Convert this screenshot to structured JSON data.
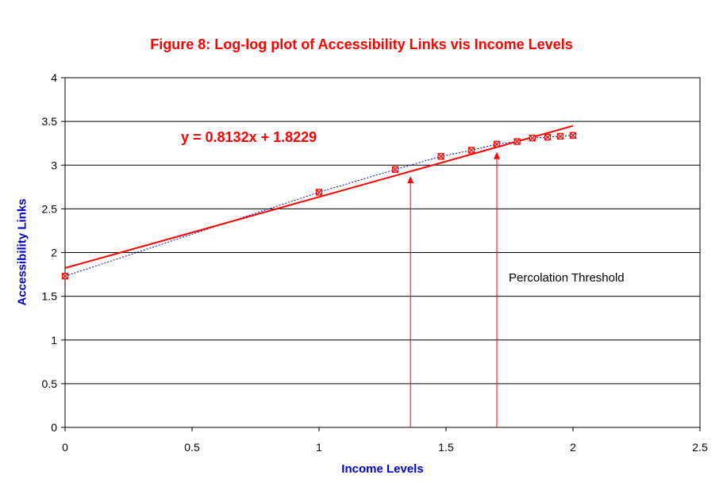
{
  "chart_data": {
    "type": "scatter",
    "title": "Figure 8: Log-log plot of Accessibility Links vis Income Levels",
    "xlabel": "Income Levels",
    "ylabel": "Accessibility Links",
    "xlim": [
      0,
      2.5
    ],
    "ylim": [
      0,
      4
    ],
    "x_ticks": [
      0,
      0.5,
      1,
      1.5,
      2,
      2.5
    ],
    "y_ticks": [
      0,
      0.5,
      1,
      1.5,
      2,
      2.5,
      3,
      3.5,
      4
    ],
    "x_tick_labels": [
      "0",
      "0.5",
      "1",
      "1.5",
      "2",
      "2.5"
    ],
    "y_tick_labels": [
      "0",
      "0.5",
      "1",
      "1.5",
      "2",
      "2.5",
      "3",
      "3.5",
      "4"
    ],
    "grid": "horizontal",
    "points": {
      "x": [
        0,
        1.0,
        1.3,
        1.48,
        1.6,
        1.7,
        1.78,
        1.84,
        1.9,
        1.95,
        2.0
      ],
      "y": [
        1.73,
        2.69,
        2.95,
        3.1,
        3.17,
        3.24,
        3.27,
        3.31,
        3.32,
        3.33,
        3.34
      ],
      "color": "#ff0000"
    },
    "trendline": {
      "slope": 0.8132,
      "intercept": 1.8229,
      "x_range": [
        0,
        2.0
      ],
      "color": "#ff0000",
      "equation_label": "y = 0.8132x + 1.8229"
    },
    "connector_color": "#0000cc",
    "threshold_markers": {
      "x": [
        1.36,
        1.7
      ],
      "color": "#ff0000"
    },
    "annotation": "Percolation Threshold"
  }
}
